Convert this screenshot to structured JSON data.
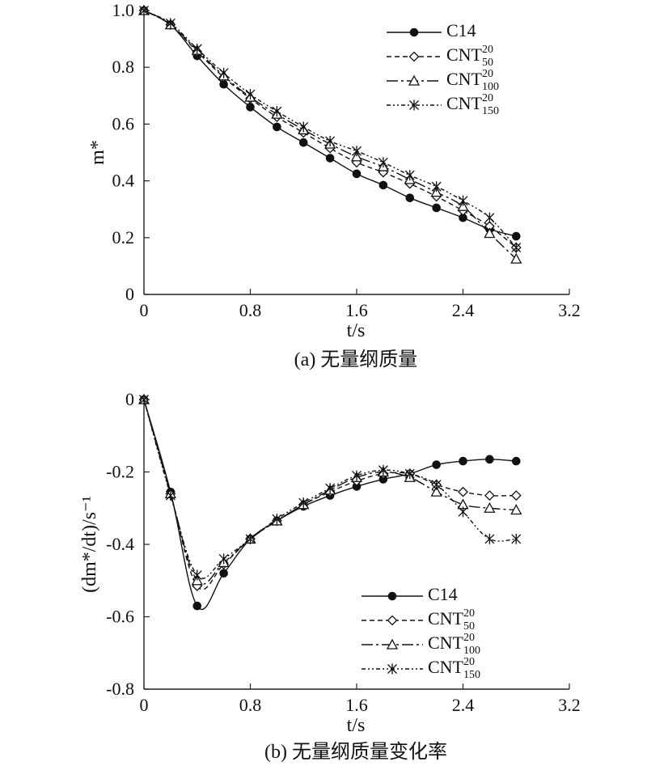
{
  "chart_data": [
    {
      "type": "line",
      "panel": "a",
      "caption": "(a) 无量纲质量",
      "xlabel": "t/s",
      "ylabel": "m*",
      "xlim": [
        0,
        3.2
      ],
      "ylim": [
        0,
        1.0
      ],
      "xticks": [
        "0",
        "0.8",
        "1.6",
        "2.4",
        "3.2"
      ],
      "yticks": [
        "0",
        "0.2",
        "0.4",
        "0.6",
        "0.8",
        "1.0"
      ],
      "legend_position": "top-right",
      "x": [
        0,
        0.2,
        0.4,
        0.6,
        0.8,
        1.0,
        1.2,
        1.4,
        1.6,
        1.8,
        2.0,
        2.2,
        2.4,
        2.6,
        2.8
      ],
      "series": [
        {
          "name": "C14",
          "name_base": "C14",
          "sup": "",
          "sub": "",
          "marker": "circle",
          "dash": "",
          "values": [
            1.0,
            0.95,
            0.84,
            0.74,
            0.66,
            0.59,
            0.535,
            0.48,
            0.425,
            0.385,
            0.34,
            0.305,
            0.27,
            0.23,
            0.205
          ]
        },
        {
          "name": "CNT 20 50",
          "name_base": "CNT",
          "sup": "20",
          "sub": "50",
          "marker": "diamond",
          "dash": "6,4",
          "values": [
            1.0,
            0.95,
            0.855,
            0.765,
            0.69,
            0.625,
            0.57,
            0.515,
            0.465,
            0.43,
            0.39,
            0.345,
            0.295,
            0.24,
            0.165
          ]
        },
        {
          "name": "CNT 20 100",
          "name_base": "CNT",
          "sup": "20",
          "sub": "100",
          "marker": "triangle",
          "dash": "14,4,3,4",
          "values": [
            1.0,
            0.95,
            0.86,
            0.77,
            0.695,
            0.635,
            0.58,
            0.53,
            0.485,
            0.45,
            0.405,
            0.36,
            0.31,
            0.215,
            0.125
          ]
        },
        {
          "name": "CNT 20 150",
          "name_base": "CNT",
          "sup": "20",
          "sub": "150",
          "marker": "star",
          "dash": "5,3,2,3,2,3",
          "values": [
            1.0,
            0.955,
            0.865,
            0.78,
            0.705,
            0.645,
            0.59,
            0.54,
            0.505,
            0.465,
            0.42,
            0.38,
            0.33,
            0.27,
            0.165
          ]
        }
      ]
    },
    {
      "type": "line",
      "panel": "b",
      "caption": "(b) 无量纲质量变化率",
      "xlabel": "t/s",
      "ylabel": "(dm*/dt)/s⁻¹",
      "xlim": [
        0,
        3.2
      ],
      "ylim": [
        -0.8,
        0
      ],
      "xticks": [
        "0",
        "0.8",
        "1.6",
        "2.4",
        "3.2"
      ],
      "yticks": [
        "0",
        "-0.2",
        "-0.4",
        "-0.6",
        "-0.8"
      ],
      "legend_position": "bottom-right",
      "x": [
        0,
        0.2,
        0.4,
        0.6,
        0.8,
        1.0,
        1.2,
        1.4,
        1.6,
        1.8,
        2.0,
        2.2,
        2.4,
        2.6,
        2.8
      ],
      "series": [
        {
          "name": "C14",
          "name_base": "C14",
          "sup": "",
          "sub": "",
          "marker": "circle",
          "dash": "",
          "values": [
            0,
            -0.255,
            -0.57,
            -0.48,
            -0.385,
            -0.335,
            -0.295,
            -0.265,
            -0.24,
            -0.22,
            -0.205,
            -0.18,
            -0.17,
            -0.165,
            -0.17
          ]
        },
        {
          "name": "CNT 20 50",
          "name_base": "CNT",
          "sup": "20",
          "sub": "50",
          "marker": "diamond",
          "dash": "6,4",
          "values": [
            0,
            -0.26,
            -0.515,
            -0.455,
            -0.385,
            -0.335,
            -0.29,
            -0.255,
            -0.225,
            -0.205,
            -0.205,
            -0.235,
            -0.255,
            -0.265,
            -0.265
          ]
        },
        {
          "name": "CNT 20 100",
          "name_base": "CNT",
          "sup": "20",
          "sub": "100",
          "marker": "triangle",
          "dash": "14,4,3,4",
          "values": [
            0,
            -0.26,
            -0.5,
            -0.45,
            -0.385,
            -0.335,
            -0.29,
            -0.25,
            -0.215,
            -0.2,
            -0.215,
            -0.255,
            -0.29,
            -0.3,
            -0.305
          ]
        },
        {
          "name": "CNT 20 150",
          "name_base": "CNT",
          "sup": "20",
          "sub": "150",
          "marker": "star",
          "dash": "5,3,2,3,2,3",
          "values": [
            0,
            -0.265,
            -0.485,
            -0.44,
            -0.385,
            -0.33,
            -0.285,
            -0.245,
            -0.21,
            -0.195,
            -0.205,
            -0.235,
            -0.31,
            -0.385,
            -0.385
          ]
        }
      ]
    }
  ]
}
